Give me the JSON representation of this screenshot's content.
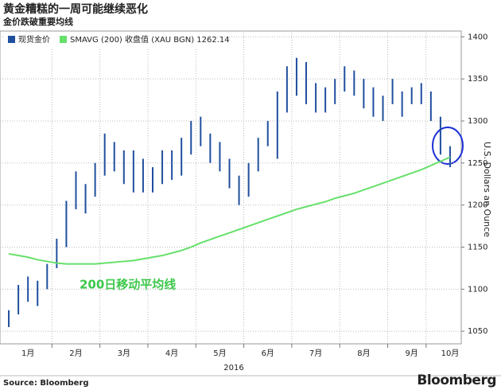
{
  "chart_data": {
    "type": "hilo",
    "title": "黄金糟糕的一周可能继续恶化",
    "subtitle": "金价跌破重要均线",
    "y_label": "U.S. Dollars an Ounce",
    "x_label": "2016",
    "annotation": "200日移动平均线",
    "source": "Source: Bloomberg",
    "brand": "Bloomberg",
    "categories": [
      null,
      null,
      "1月",
      null,
      null,
      null,
      null,
      "2月",
      null,
      null,
      null,
      null,
      "3月",
      null,
      null,
      null,
      null,
      "4月",
      null,
      null,
      null,
      null,
      "5月",
      null,
      null,
      null,
      null,
      "6月",
      null,
      null,
      null,
      null,
      "7月",
      null,
      null,
      null,
      null,
      "8月",
      null,
      null,
      null,
      null,
      "9月",
      null,
      null,
      null,
      "10月"
    ],
    "series": [
      {
        "name": "现货金价",
        "type": "hilo",
        "color": "#1f4f9e",
        "high": [
          1075,
          1105,
          1115,
          1110,
          1130,
          1160,
          1205,
          1240,
          1225,
          1250,
          1285,
          1275,
          1265,
          1265,
          1255,
          1245,
          1265,
          1265,
          1280,
          1300,
          1305,
          1285,
          1275,
          1255,
          1235,
          1250,
          1280,
          1300,
          1335,
          1365,
          1375,
          1370,
          1345,
          1340,
          1350,
          1365,
          1360,
          1350,
          1340,
          1330,
          1350,
          1335,
          1340,
          1345,
          1335,
          1305,
          1270
        ],
        "low": [
          1055,
          1070,
          1085,
          1080,
          1100,
          1125,
          1150,
          1195,
          1190,
          1210,
          1235,
          1240,
          1225,
          1215,
          1215,
          1215,
          1225,
          1230,
          1235,
          1260,
          1270,
          1250,
          1240,
          1220,
          1200,
          1210,
          1240,
          1270,
          1255,
          1310,
          1330,
          1320,
          1310,
          1310,
          1320,
          1335,
          1330,
          1315,
          1305,
          1300,
          1320,
          1305,
          1320,
          1320,
          1300,
          1260,
          1245
        ]
      },
      {
        "name": "SMAVG (200) 收盘值 (XAU BGN) 1262.14",
        "type": "line",
        "color": "#66e06a",
        "values": [
          1142,
          1140,
          1138,
          1135,
          1133,
          1131,
          1130,
          1130,
          1130,
          1130,
          1131,
          1132,
          1133,
          1134,
          1136,
          1138,
          1140,
          1143,
          1146,
          1150,
          1155,
          1159,
          1163,
          1167,
          1171,
          1175,
          1179,
          1183,
          1187,
          1191,
          1195,
          1198,
          1201,
          1204,
          1208,
          1211,
          1214,
          1218,
          1222,
          1226,
          1230,
          1234,
          1238,
          1242,
          1247,
          1252,
          1257
        ]
      }
    ],
    "ylim": [
      1035,
      1405
    ],
    "yticks": [
      1050,
      1100,
      1150,
      1200,
      1250,
      1300,
      1350,
      1400
    ],
    "grid": true
  }
}
